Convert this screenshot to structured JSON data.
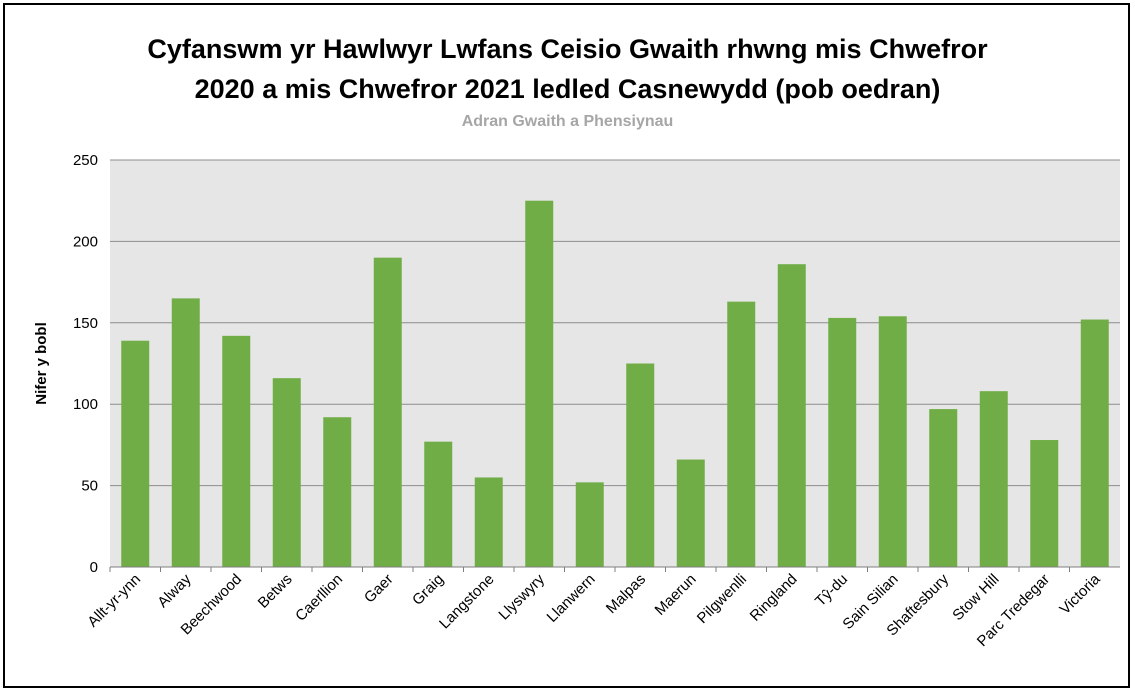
{
  "chart_data": {
    "type": "bar",
    "title_line1": "Cyfanswm yr Hawlwyr Lwfans Ceisio Gwaith rhwng mis Chwefror",
    "title_line2": "2020 a mis Chwefror 2021 ledled Casnewydd (pob oedran)",
    "subtitle": "Adran Gwaith a Phensiynau",
    "xlabel": "",
    "ylabel": "Nifer y bobl",
    "ylim": [
      0,
      250
    ],
    "yticks": [
      0,
      50,
      100,
      150,
      200,
      250
    ],
    "grid": true,
    "categories": [
      "Allt-yr-ynn",
      "Alway",
      "Beechwood",
      "Betws",
      "Caerllion",
      "Gaer",
      "Graig",
      "Langstone",
      "Llyswyry",
      "Llanwern",
      "Malpas",
      "Maerun",
      "Pilgwenlli",
      "Ringland",
      "Tŷ-du",
      "Sain Silian",
      "Shaftesbury",
      "Stow Hill",
      "Parc Tredegar",
      "Victoria"
    ],
    "values": [
      139,
      165,
      142,
      116,
      92,
      190,
      77,
      55,
      225,
      52,
      125,
      66,
      163,
      186,
      153,
      154,
      97,
      108,
      78,
      152
    ],
    "colors": {
      "bar": "#70ad47",
      "plot_background": "#e7e6e6",
      "gridline": "#8c8c8c",
      "axis": "#7f7f7f",
      "subtitle": "#a6a6a6"
    }
  }
}
